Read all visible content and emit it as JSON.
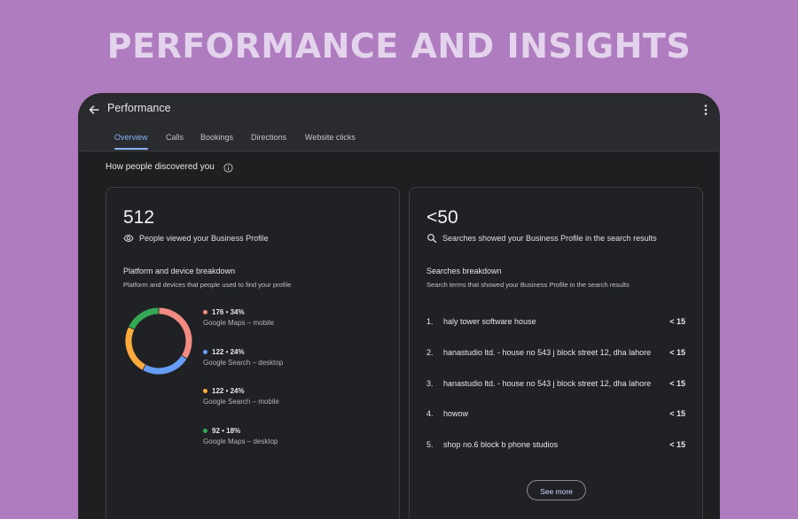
{
  "banner": {
    "title": "PERFORMANCE AND INSIGHTS"
  },
  "header": {
    "title": "Performance",
    "back_icon": "arrow-left-icon",
    "more_icon": "more-vertical-icon"
  },
  "tabs": [
    {
      "label": "Overview",
      "active": true
    },
    {
      "label": "Calls",
      "active": false
    },
    {
      "label": "Bookings",
      "active": false
    },
    {
      "label": "Directions",
      "active": false
    },
    {
      "label": "Website clicks",
      "active": false
    }
  ],
  "section": {
    "title": "How people discovered you",
    "icon": "info-icon"
  },
  "profile_views": {
    "count": "512",
    "label": "People viewed your Business Profile",
    "icon": "eye-icon",
    "breakdown_title": "Platform and device breakdown",
    "breakdown_desc": "Platform and devices that people used to find your profile",
    "items": [
      {
        "value": "176 • 34%",
        "name": "Google Maps – mobile",
        "color": "#f28b82",
        "share": 34
      },
      {
        "value": "122 • 24%",
        "name": "Google Search – desktop",
        "color": "#669df6",
        "share": 24
      },
      {
        "value": "122 • 24%",
        "name": "Google Search – mobile",
        "color": "#fdab3d",
        "share": 24
      },
      {
        "value": "92 • 18%",
        "name": "Google Maps – desktop",
        "color": "#34a853",
        "share": 18
      }
    ]
  },
  "searches": {
    "count": "<50",
    "label": "Searches showed your Business Profile in the search results",
    "icon": "search-icon",
    "breakdown_title": "Searches breakdown",
    "breakdown_desc": "Search terms that showed your Business Profile in the search results",
    "rows": [
      {
        "index": "1.",
        "term": "haly tower software house",
        "count": "< 15"
      },
      {
        "index": "2.",
        "term": "hanastudio ltd. - house no 543 j block street 12, dha lahore",
        "count": "< 15"
      },
      {
        "index": "3.",
        "term": "hanastudio ltd. - house no 543 j block street 12, dha lahore",
        "count": "< 15"
      },
      {
        "index": "4.",
        "term": "howow",
        "count": "< 15"
      },
      {
        "index": "5.",
        "term": "shop no.6 block b phone studios",
        "count": "< 15"
      }
    ],
    "see_more": "See more"
  },
  "colors": {
    "accent": "#8ab4f8",
    "background": "#b07cc0",
    "surface": "#1e1f21"
  }
}
